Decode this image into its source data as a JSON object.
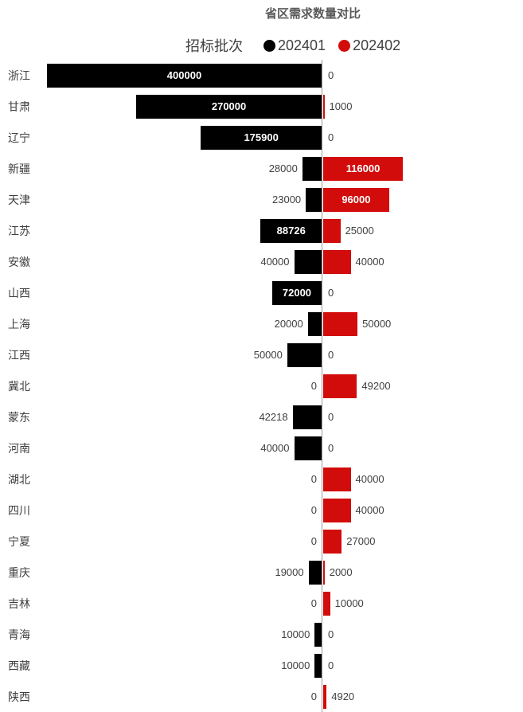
{
  "chart_data": {
    "type": "bar",
    "variant": "diverging-horizontal",
    "title": "省区需求数量对比",
    "legend_title": "招标批次",
    "legend_position": "top",
    "grid": false,
    "value_axis_labels_visible": false,
    "data_labels": "visible-on-every-bar",
    "categories": [
      "浙江",
      "甘肃",
      "辽宁",
      "新疆",
      "天津",
      "江苏",
      "安徽",
      "山西",
      "上海",
      "江西",
      "冀北",
      "蒙东",
      "河南",
      "湖北",
      "四川",
      "宁夏",
      "重庆",
      "吉林",
      "青海",
      "西藏",
      "陕西"
    ],
    "series": [
      {
        "name": "202401",
        "color": "#000000",
        "direction": "left",
        "values": [
          400000,
          270000,
          175900,
          28000,
          23000,
          88726,
          40000,
          72000,
          20000,
          50000,
          0,
          42218,
          40000,
          0,
          0,
          0,
          19000,
          0,
          10000,
          10000,
          0
        ]
      },
      {
        "name": "202402",
        "color": "#d20b0b",
        "direction": "right",
        "values": [
          0,
          1000,
          0,
          116000,
          96000,
          25000,
          40000,
          0,
          50000,
          0,
          49200,
          0,
          0,
          40000,
          40000,
          27000,
          2000,
          10000,
          0,
          0,
          4920
        ]
      }
    ],
    "value_range_left_max": 400000,
    "value_range_right_max": 116000
  },
  "colors": {
    "title_text": "#595959",
    "label_text": "#404040",
    "inside_label_text": "#ffffff",
    "axis_line": "#9a9a9a",
    "background": "#ffffff"
  }
}
